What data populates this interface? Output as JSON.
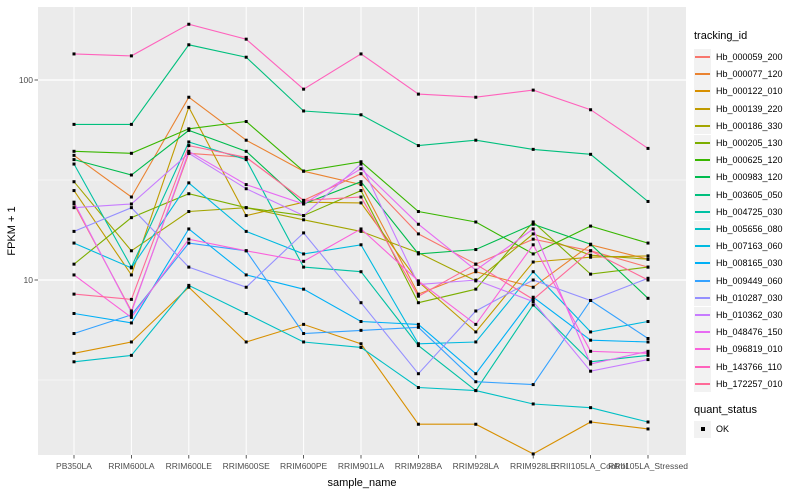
{
  "figure": {
    "background": "#FFFFFF",
    "panel_background": "#EBEBEB",
    "gridline_color": "#FFFFFF",
    "tick_color": "#333333",
    "point_color": "#000000",
    "legend_key_fill": "#F2F2F2"
  },
  "chart_data": {
    "type": "line",
    "xlabel": "sample_name",
    "ylabel": "FPKM + 1",
    "y_scale": "log10",
    "y_tick_labels": [
      "100",
      "10"
    ],
    "y_tick_values": [
      100,
      10
    ],
    "ylim": [
      1.2,
      230
    ],
    "grid": true,
    "legend_position": "right",
    "legend_title": "tracking_id",
    "point_legend": {
      "title": "quant_status",
      "items": [
        "OK"
      ]
    },
    "point_shape": "black-square",
    "x_categories": [
      "PB350LA",
      "RRIM600LA",
      "RRIM600LE",
      "RRIM600SE",
      "RRIM600PE",
      "RRIM901LA",
      "RRIM928BA",
      "RRIM928LA",
      "RRIM928LE",
      "RRII105LA_Control",
      "RRII105LA_Stressed"
    ],
    "series": [
      {
        "name": "Hb_000059_200",
        "color": "#F8766D",
        "values": [
          24,
          7.0,
          43,
          41,
          25,
          34,
          17,
          12,
          16,
          14,
          11.6
        ]
      },
      {
        "name": "Hb_000077_120",
        "color": "#EA8331",
        "values": [
          42,
          26,
          82,
          50,
          35,
          30,
          8.5,
          11,
          9.2,
          15,
          12.7
        ]
      },
      {
        "name": "Hb_000122_010",
        "color": "#D89000",
        "values": [
          4.3,
          4.9,
          9.2,
          4.9,
          6.0,
          4.8,
          1.9,
          1.9,
          1.35,
          1.95,
          1.8
        ]
      },
      {
        "name": "Hb_000139_220",
        "color": "#C09B00",
        "values": [
          28,
          10.6,
          73,
          21,
          24.5,
          24.3,
          9.8,
          5.5,
          12.3,
          13,
          13.2
        ]
      },
      {
        "name": "Hb_000186_330",
        "color": "#A3A500",
        "values": [
          31,
          14,
          22,
          23,
          20,
          17.5,
          13.7,
          9.9,
          17,
          13.3,
          12.7
        ]
      },
      {
        "name": "Hb_000205_130",
        "color": "#7CAE00",
        "values": [
          12,
          20.5,
          27,
          23,
          21,
          28,
          7.7,
          9.0,
          19.5,
          10.7,
          11.6
        ]
      },
      {
        "name": "Hb_000625_120",
        "color": "#39B600",
        "values": [
          44,
          43,
          57,
          62,
          35,
          39,
          22,
          19.5,
          13.5,
          18.6,
          15.3
        ]
      },
      {
        "name": "Hb_000983_120",
        "color": "#00BB4E",
        "values": [
          40,
          33.5,
          56,
          44,
          24,
          31,
          13.5,
          14.2,
          19,
          15.1,
          8.1
        ]
      },
      {
        "name": "Hb_003605_050",
        "color": "#00BF7D",
        "values": [
          60,
          60,
          150,
          130,
          70,
          67,
          47,
          50,
          45,
          42.5,
          24.7
        ]
      },
      {
        "name": "Hb_004725_030",
        "color": "#00C1A3",
        "values": [
          38,
          11.6,
          49,
          40,
          11.6,
          11,
          4.7,
          2.8,
          7.5,
          3.9,
          4.2
        ]
      },
      {
        "name": "Hb_005656_080",
        "color": "#00BFC4",
        "values": [
          3.9,
          4.2,
          9.4,
          6.8,
          4.9,
          4.6,
          2.9,
          2.8,
          2.4,
          2.3,
          1.95
        ]
      },
      {
        "name": "Hb_007163_060",
        "color": "#00BAE0",
        "values": [
          15.3,
          11.5,
          30.6,
          17.5,
          13.5,
          15,
          4.8,
          4.9,
          11,
          5.5,
          6.2
        ]
      },
      {
        "name": "Hb_008165_030",
        "color": "#00B0F6",
        "values": [
          6.8,
          6.1,
          18,
          10.6,
          9.0,
          6.2,
          6.0,
          3.4,
          8.2,
          5.0,
          4.9
        ]
      },
      {
        "name": "Hb_009449_060",
        "color": "#35A2FF",
        "values": [
          5.4,
          6.7,
          15.3,
          14,
          5.4,
          5.6,
          5.8,
          3.1,
          3.0,
          7.9,
          5.1
        ]
      },
      {
        "name": "Hb_010287_030",
        "color": "#9590FF",
        "values": [
          17.5,
          23,
          11.6,
          9.2,
          17.2,
          7.7,
          3.4,
          7.0,
          10,
          7.9,
          10.2
        ]
      },
      {
        "name": "Hb_010362_030",
        "color": "#C77CFF",
        "values": [
          23,
          24,
          43,
          28.6,
          21,
          38,
          9.5,
          10,
          7.8,
          3.5,
          4.0
        ]
      },
      {
        "name": "Hb_048476_150",
        "color": "#E76BF3",
        "values": [
          24.5,
          6.9,
          44,
          30,
          24,
          36,
          19,
          11.2,
          18,
          3.8,
          4.4
        ]
      },
      {
        "name": "Hb_096819_010",
        "color": "#FA62DB",
        "values": [
          10.6,
          6.5,
          16,
          14,
          12.4,
          18,
          9.9,
          6.0,
          15,
          4.4,
          4.3
        ]
      },
      {
        "name": "Hb_143766_110",
        "color": "#FF62BC",
        "values": [
          135,
          132,
          190,
          160,
          90,
          135,
          85,
          82,
          89,
          71,
          45.5
        ]
      },
      {
        "name": "Hb_172257_010",
        "color": "#FF6A98",
        "values": [
          8.5,
          8.0,
          47,
          41,
          25,
          26,
          8.3,
          12,
          8.0,
          14,
          10
        ]
      }
    ]
  }
}
